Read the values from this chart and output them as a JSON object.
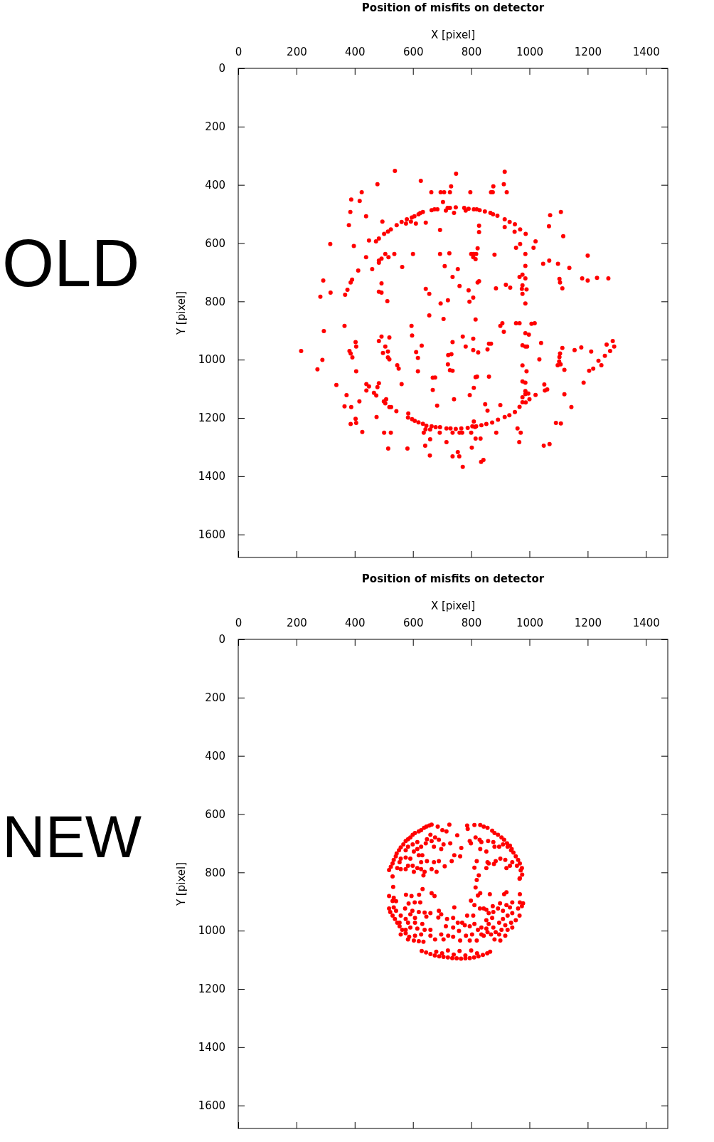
{
  "chart_data": [
    {
      "type": "scatter",
      "title": "Position of misfits on detector",
      "xlabel": "X [pixel]",
      "ylabel": "Y [pixel]",
      "annotations": [
        "OLD"
      ],
      "xlim": [
        0,
        1475
      ],
      "ylim": [
        1679,
        0
      ],
      "xticks": [
        0,
        200,
        400,
        600,
        800,
        1000,
        1200,
        1400
      ],
      "yticks": [
        0,
        200,
        400,
        600,
        800,
        1000,
        1200,
        1400,
        1600
      ],
      "marker": "circle",
      "series": [
        {
          "color": "#ff0000",
          "x": [
            538,
            748,
            915,
            627,
            478,
            912,
            731,
            876,
            424,
            663,
            695,
            707,
            727,
            797,
            868,
            874,
            922,
            388,
            417,
            703,
            385,
            1108,
            1071,
            439,
            380,
            1067,
            1116,
            316,
            397,
            495,
            544,
            524,
            514,
            501,
            483,
            473,
            449,
            561,
            576,
            579,
            593,
            596,
            605,
            610,
            619,
            625,
            634,
            644,
            664,
            674,
            684,
            693,
            713,
            719,
            727,
            741,
            747,
            776,
            781,
            791,
            809,
            819,
            829,
            847,
            866,
            875,
            890,
            915,
            915,
            932,
            950,
            949,
            968,
            987,
            1021,
            1014,
            954,
            968,
            827,
            827,
            822,
            439,
            505,
            492,
            483,
            483,
            516,
            536,
            600,
            693,
            725,
            800,
            808,
            817,
            807,
            815,
            880,
            986,
            986,
            1047,
            1068,
            1098,
            1137,
            1200,
            709,
            754,
            563,
            460,
            412,
            391,
            386,
            375,
            367,
            292,
            282,
            317,
            492,
            483,
            492,
            512,
            736,
            760,
            644,
            656,
            695,
            720,
            791,
            807,
            794,
            822,
            827,
            885,
            919,
            934,
            966,
            976,
            986,
            976,
            974,
            990,
            976,
            986,
            1103,
            1105,
            1113,
            1181,
            1200,
            1232,
            1271,
            656,
            705,
            815,
            365,
            595,
            294,
            597,
            900,
            907,
            912,
            954,
            966,
            1007,
            1018,
            986,
            998,
            216,
            272,
            289,
            382,
            386,
            392,
            403,
            405,
            483,
            492,
            519,
            505,
            497,
            514,
            514,
            519,
            546,
            551,
            405,
            611,
            617,
            617,
            630,
            736,
            771,
            781,
            807,
            721,
            732,
            720,
            727,
            736,
            807,
            824,
            856,
            861,
            868,
            976,
            986,
            992,
            1040,
            1034,
            976,
            990,
            1097,
            1107,
            1102,
            1103,
            1105,
            1113,
            1120,
            1155,
            1178,
            1212,
            1265,
            1286,
            1291,
            1277,
            1259,
            1237,
            1247,
            1219,
            1205,
            1186,
            1144,
            1120,
            337,
            372,
            365,
            388,
            416,
            440,
            449,
            440,
            483,
            478,
            466,
            474,
            500,
            508,
            505,
            519,
            525,
            543,
            561,
            584,
            583,
            597,
            606,
            619,
            634,
            646,
            664,
            678,
            693,
            715,
            729,
            747,
            766,
            788,
            804,
            817,
            835,
            852,
            872,
            892,
            915,
            931,
            950,
            966,
            976,
            987,
            1000,
            976,
            986,
            996,
            1021,
            976,
            986,
            986,
            1051,
            1061,
            1053,
            668,
            676,
            668,
            741,
            795,
            809,
            815,
            820,
            861,
            848,
            856,
            900,
            683,
            403,
            386,
            405,
            475,
            426,
            501,
            524,
            515,
            581,
            637,
            643,
            659,
            692,
            659,
            642,
            658,
            715,
            736,
            760,
            769,
            736,
            759,
            754,
            771,
            802,
            800,
            809,
            813,
            815,
            832,
            834,
            842,
            886,
            959,
            970,
            965,
            1049,
            1069,
            1091,
            1108
          ],
          "values": [
            352,
            362,
            355,
            386,
            398,
            398,
            405,
            405,
            425,
            425,
            425,
            425,
            425,
            425,
            425,
            425,
            425,
            450,
            455,
            459,
            493,
            493,
            504,
            508,
            538,
            542,
            576,
            603,
            610,
            526,
            538,
            553,
            560,
            568,
            584,
            594,
            591,
            527,
            533,
            518,
            526,
            512,
            508,
            533,
            501,
            497,
            493,
            530,
            487,
            484,
            484,
            555,
            488,
            479,
            479,
            496,
            477,
            479,
            488,
            482,
            484,
            484,
            487,
            491,
            496,
            501,
            506,
            518,
            545,
            527,
            535,
            561,
            553,
            568,
            594,
            616,
            616,
            603,
            540,
            562,
            618,
            648,
            637,
            653,
            660,
            667,
            648,
            637,
            637,
            637,
            635,
            637,
            637,
            637,
            648,
            655,
            640,
            637,
            678,
            671,
            660,
            671,
            685,
            643,
            679,
            689,
            682,
            689,
            694,
            725,
            735,
            760,
            777,
            728,
            784,
            770,
            738,
            767,
            770,
            799,
            716,
            747,
            757,
            774,
            807,
            796,
            762,
            787,
            801,
            735,
            731,
            755,
            743,
            753,
            716,
            708,
            721,
            745,
            757,
            759,
            774,
            807,
            723,
            735,
            755,
            721,
            728,
            719,
            721,
            848,
            860,
            862,
            884,
            884,
            902,
            917,
            884,
            875,
            904,
            875,
            875,
            877,
            875,
            909,
            914,
            970,
            1033,
            1001,
            970,
            979,
            992,
            940,
            955,
            936,
            921,
            924,
            955,
            977,
            972,
            992,
            999,
            1019,
            1031,
            1040,
            974,
            994,
            1040,
            952,
            940,
            921,
            955,
            928,
            984,
            981,
            1016,
            1036,
            1038,
            967,
            975,
            965,
            945,
            945,
            951,
            955,
            955,
            943,
            999,
            1020,
            1040,
            1019,
            1016,
            1006,
            991,
            979,
            960,
            1035,
            967,
            958,
            972,
            948,
            936,
            955,
            970,
            987,
            1004,
            1019,
            1031,
            1038,
            1079,
            1163,
            1119,
            1087,
            1122,
            1160,
            1163,
            1143,
            1084,
            1092,
            1106,
            1081,
            1094,
            1114,
            1123,
            1143,
            1136,
            1150,
            1163,
            1163,
            1177,
            1084,
            1185,
            1199,
            1204,
            1210,
            1215,
            1220,
            1227,
            1229,
            1232,
            1232,
            1236,
            1236,
            1238,
            1236,
            1234,
            1229,
            1229,
            1225,
            1221,
            1216,
            1206,
            1197,
            1191,
            1180,
            1162,
            1146,
            1147,
            1136,
            1129,
            1118,
            1116,
            1121,
            1075,
            1079,
            1108,
            1085,
            1102,
            1106,
            1062,
            1061,
            1104,
            1136,
            1122,
            1097,
            1060,
            1058,
            1058,
            1153,
            1175,
            1156,
            1158,
            1203,
            1221,
            1217,
            1197,
            1248,
            1251,
            1251,
            1305,
            1305,
            1251,
            1239,
            1240,
            1251,
            1273,
            1295,
            1329,
            1283,
            1251,
            1251,
            1251,
            1332,
            1332,
            1317,
            1368,
            1302,
            1251,
            1212,
            1231,
            1271,
            1271,
            1351,
            1344,
            1251,
            1236,
            1251,
            1283,
            1295,
            1290,
            1217,
            1219
          ]
        }
      ]
    },
    {
      "type": "scatter",
      "title": "Position of misfits on detector",
      "xlabel": "X [pixel]",
      "ylabel": "Y [pixel]",
      "annotations": [
        "NEW"
      ],
      "xlim": [
        0,
        1475
      ],
      "ylim": [
        1679,
        0
      ],
      "xticks": [
        0,
        200,
        400,
        600,
        800,
        1000,
        1200,
        1400
      ],
      "yticks": [
        0,
        200,
        400,
        600,
        800,
        1000,
        1200,
        1400,
        1600
      ],
      "marker": "circle",
      "series": [
        {
          "color": "#ff0000",
          "x": [
            664,
            656,
            646,
            638,
            628,
            620,
            607,
            599,
            591,
            583,
            575,
            567,
            558,
            552,
            544,
            541,
            534,
            530,
            524,
            518,
            725,
            786,
            811,
            831,
            843,
            856,
            872,
            880,
            892,
            904,
            913,
            923,
            933,
            939,
            945,
            953,
            961,
            967,
            974,
            975,
            967,
            685,
            701,
            715,
            660,
            676,
            648,
            664,
            689,
            644,
            615,
            599,
            583,
            575,
            615,
            628,
            603,
            672,
            697,
            705,
            620,
            632,
            591,
            575,
            558,
            648,
            672,
            689,
            628,
            599,
            583,
            554,
            546,
            558,
            575,
            615,
            628,
            640,
            664,
            681,
            603,
            636,
            530,
            709,
            733,
            742,
            766,
            762,
            752,
            728,
            788,
            795,
            799,
            815,
            829,
            835,
            831,
            852,
            858,
            876,
            880,
            896,
            909,
            925,
            937,
            900,
            884,
            860,
            852,
            856,
            819,
            811,
            878,
            917,
            921,
            933,
            941,
            957,
            970,
            966,
            826,
            819,
            532,
            633,
            664,
            674,
            815,
            831,
            823,
            864,
            913,
            921,
            967,
            518,
            534,
            576,
            595,
            621,
            606,
            585,
            625,
            542,
            530,
            799,
            811,
            830,
            852,
            874,
            899,
            921,
            941,
            967,
            978,
            518,
            522,
            530,
            538,
            546,
            554,
            563,
            575,
            587,
            603,
            620,
            636,
            534,
            542,
            558,
            573,
            598,
            591,
            620,
            640,
            660,
            689,
            697,
            687,
            646,
            607,
            575,
            554,
            583,
            607,
            632,
            591,
            615,
            640,
            660,
            575,
            558,
            583,
            607,
            628,
            660,
            676,
            697,
            705,
            717,
            738,
            742,
            754,
            769,
            786,
            807,
            778,
            795,
            811,
            713,
            738,
            758,
            721,
            738,
            762,
            782,
            803,
            823,
            835,
            819,
            795,
            843,
            860,
            876,
            872,
            852,
            860,
            876,
            852,
            892,
            909,
            933,
            941,
            961,
            974,
            925,
            909,
            896,
            917,
            937,
            953,
            966,
            941,
            925,
            904,
            884,
            868,
            880,
            900,
            917,
            896,
            856,
            843,
            835,
            630,
            645,
            660,
            675,
            690,
            705,
            720,
            735,
            750,
            765,
            780,
            795,
            810,
            825,
            840,
            855,
            865,
            700,
            740,
            780,
            820,
            760,
            680,
            720,
            800
          ],
          "values": [
            636,
            639,
            643,
            647,
            655,
            659,
            665,
            671,
            680,
            686,
            692,
            704,
            714,
            724,
            735,
            745,
            757,
            769,
            781,
            792,
            636,
            639,
            637,
            637,
            643,
            647,
            657,
            665,
            671,
            680,
            688,
            700,
            708,
            720,
            732,
            745,
            757,
            769,
            785,
            808,
            820,
            643,
            655,
            659,
            671,
            680,
            686,
            692,
            688,
            700,
            696,
            704,
            712,
            724,
            720,
            712,
            728,
            712,
            720,
            704,
            741,
            741,
            753,
            749,
            753,
            761,
            765,
            761,
            765,
            777,
            777,
            765,
            785,
            789,
            789,
            785,
            789,
            798,
            789,
            798,
            798,
            810,
            814,
            779,
            761,
            741,
            716,
            745,
            673,
            700,
            651,
            692,
            700,
            680,
            688,
            696,
            720,
            728,
            692,
            696,
            712,
            712,
            704,
            712,
            724,
            753,
            761,
            769,
            785,
            765,
            761,
            784,
            771,
            757,
            785,
            777,
            765,
            777,
            793,
            822,
            810,
            826,
            850,
            857,
            871,
            881,
            852,
            871,
            879,
            875,
            875,
            868,
            875,
            881,
            887,
            877,
            881,
            877,
            903,
            907,
            903,
            899,
            898,
            897,
            912,
            924,
            928,
            916,
            906,
            912,
            903,
            903,
            906,
            924,
            936,
            948,
            960,
            973,
            985,
            997,
            1009,
            1021,
            1034,
            1036,
            1038,
            920,
            932,
            948,
            924,
            932,
            944,
            936,
            938,
            940,
            932,
            944,
            955,
            952,
            956,
            960,
            973,
            973,
            973,
            977,
            989,
            993,
            997,
            997,
            997,
            1013,
            1030,
            1017,
            1013,
            1017,
            1030,
            1013,
            1030,
            960,
            956,
            920,
            973,
            973,
            948,
            948,
            981,
            985,
            977,
            985,
            989,
            1001,
            1017,
            1021,
            1034,
            1017,
            1013,
            997,
            1013,
            1034,
            1034,
            924,
            940,
            936,
            956,
            964,
            977,
            989,
            993,
            924,
            932,
            920,
            940,
            924,
            916,
            948,
            960,
            973,
            981,
            973,
            964,
            948,
            989,
            997,
            997,
            1005,
            1013,
            1030,
            1034,
            1017,
            1013,
            1005,
            1017,
            989,
            1070,
            1075,
            1080,
            1085,
            1088,
            1090,
            1092,
            1094,
            1095,
            1096,
            1095,
            1094,
            1092,
            1088,
            1083,
            1078,
            1072,
            1078,
            1082,
            1085,
            1078,
            1070,
            1072,
            1068,
            1068
          ]
        }
      ]
    }
  ]
}
